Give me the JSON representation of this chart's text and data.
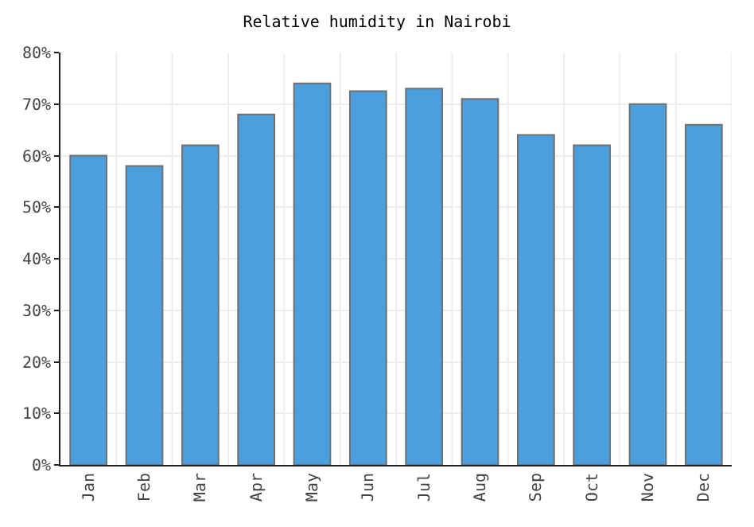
{
  "chart_data": {
    "type": "bar",
    "title": "Relative humidity in Nairobi",
    "categories": [
      "Jan",
      "Feb",
      "Mar",
      "Apr",
      "May",
      "Jun",
      "Jul",
      "Aug",
      "Sep",
      "Oct",
      "Nov",
      "Dec"
    ],
    "values": [
      60,
      58,
      62,
      68,
      74,
      72.5,
      73,
      71,
      64,
      62,
      70,
      66
    ],
    "color": "#4a9fdc",
    "ylim": [
      0,
      80
    ],
    "yticks": [
      {
        "value": 0,
        "label": "0%"
      },
      {
        "value": 10,
        "label": "10%"
      },
      {
        "value": 20,
        "label": "20%"
      },
      {
        "value": 30,
        "label": "30%"
      },
      {
        "value": 40,
        "label": "40%"
      },
      {
        "value": 50,
        "label": "50%"
      },
      {
        "value": 60,
        "label": "60%"
      },
      {
        "value": 70,
        "label": "70%"
      },
      {
        "value": 80,
        "label": "80%"
      }
    ],
    "grid": true
  }
}
